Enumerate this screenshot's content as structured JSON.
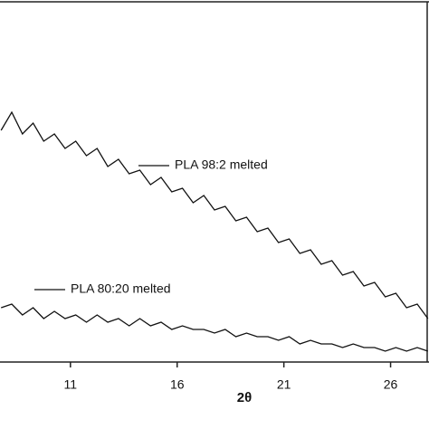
{
  "chart_data": {
    "type": "line",
    "x_label": "2θ",
    "x": [
      7.75,
      8.25,
      8.75,
      9.25,
      9.75,
      10.25,
      10.75,
      11.25,
      11.75,
      12.25,
      12.75,
      13.25,
      13.75,
      14.25,
      14.75,
      15.25,
      15.75,
      16.25,
      16.75,
      17.25,
      17.75,
      18.25,
      18.75,
      19.25,
      19.75,
      20.25,
      20.75,
      21.25,
      21.75,
      22.25,
      22.75,
      23.25,
      23.75,
      24.25,
      24.75,
      25.25,
      25.75,
      26.25,
      26.75,
      27.25,
      27.75
    ],
    "series": [
      {
        "name": "PLA 98:2 melted",
        "color": "#111111",
        "values": [
          64,
          69,
          63,
          66,
          61,
          63,
          59,
          61,
          57,
          59,
          54,
          56,
          52,
          53,
          49,
          51,
          47,
          48,
          44,
          46,
          42,
          43,
          39,
          40,
          36,
          37,
          33,
          34,
          30,
          31,
          27,
          28,
          24,
          25,
          21,
          22,
          18,
          19,
          15,
          16,
          12
        ]
      },
      {
        "name": "PLA 80:20 melted",
        "color": "#111111",
        "values": [
          15,
          16,
          13,
          15,
          12,
          14,
          12,
          13,
          11,
          13,
          11,
          12,
          10,
          12,
          10,
          11,
          9,
          10,
          9,
          9,
          8,
          9,
          7,
          8,
          7,
          7,
          6,
          7,
          5,
          6,
          5,
          5,
          4,
          5,
          4,
          4,
          3,
          4,
          3,
          4,
          3
        ]
      }
    ],
    "xlim": [
      7.7,
      27.8
    ],
    "xticks": [
      11,
      16,
      21,
      26
    ],
    "ylim": [
      0,
      100
    ]
  }
}
